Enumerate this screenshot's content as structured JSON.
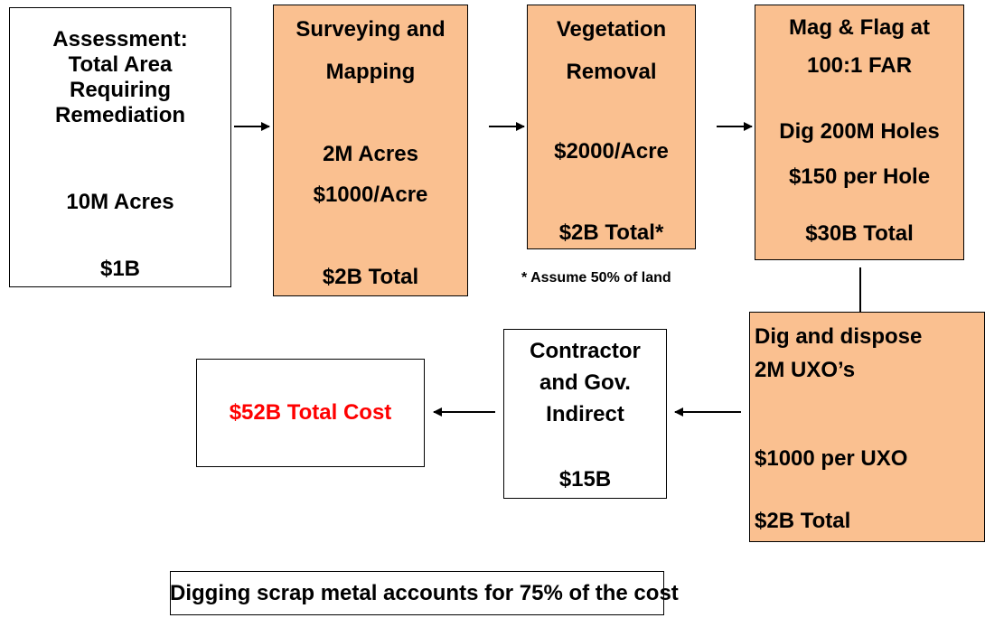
{
  "nodes": [
    {
      "lines": [
        "Assessment:",
        "Total Area",
        "Requiring",
        "Remediation",
        "10M Acres",
        "$1B"
      ]
    },
    {
      "lines": [
        "Surveying and",
        "Mapping",
        "2M Acres",
        "$1000/Acre",
        "$2B Total"
      ]
    },
    {
      "lines": [
        "Vegetation",
        "Removal",
        "$2000/Acre",
        "$2B Total*"
      ]
    },
    {
      "lines": [
        "Mag & Flag at",
        "100:1 FAR",
        "Dig 200M Holes",
        "$150 per Hole",
        "$30B Total"
      ]
    },
    {
      "lines": [
        "Dig and dispose",
        "2M UXO’s",
        "$1000 per UXO",
        "$2B Total"
      ]
    },
    {
      "lines": [
        "Contractor",
        "and Gov.",
        "Indirect",
        "$15B"
      ]
    },
    {
      "lines": [
        "$52B Total Cost"
      ]
    }
  ],
  "note": "* Assume 50% of land",
  "footer": "Digging scrap metal accounts for 75% of the cost"
}
